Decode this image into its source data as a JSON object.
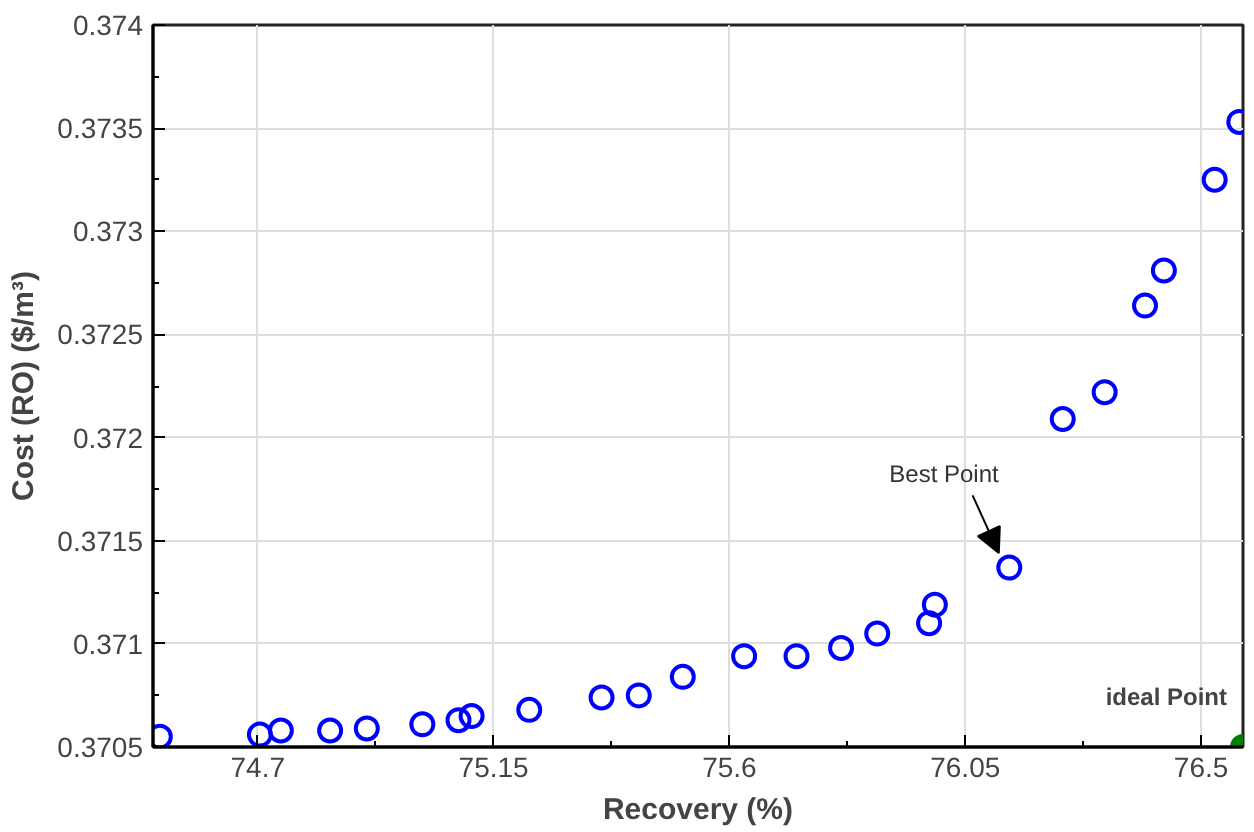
{
  "chart_data": {
    "type": "scatter",
    "xlabel": "Recovery (%)",
    "ylabel": "Cost (RO) ($/m³)",
    "xlim": [
      74.5,
      76.58
    ],
    "ylim": [
      0.3705,
      0.374
    ],
    "xticks": [
      74.7,
      {
        "value": 74.925,
        "label": null
      },
      75.15,
      {
        "value": 75.375,
        "label": null
      },
      75.6,
      {
        "value": 75.825,
        "label": null
      },
      76.05,
      {
        "value": 76.275,
        "label": null
      },
      76.5
    ],
    "yticks": [
      0.3705,
      {
        "value": 0.37075,
        "label": null
      },
      0.371,
      {
        "value": 0.37125,
        "label": null
      },
      0.3715,
      {
        "value": 0.37175,
        "label": null
      },
      0.372,
      {
        "value": 0.37225,
        "label": null
      },
      0.3725,
      {
        "value": 0.37275,
        "label": null
      },
      0.373,
      {
        "value": 0.37325,
        "label": null
      },
      0.3735,
      {
        "value": 0.37375,
        "label": null
      },
      0.374
    ],
    "grid": true,
    "marker": "circle",
    "series": [
      {
        "color": "#0000ff",
        "x": [
          74.513,
          74.704,
          74.744,
          74.838,
          74.908,
          75.014,
          75.083,
          75.108,
          75.218,
          75.356,
          75.427,
          75.511,
          75.628,
          75.728,
          75.813,
          75.882,
          75.981,
          75.992,
          76.134,
          76.236,
          76.316,
          76.393,
          76.429,
          76.526,
          76.573
        ],
        "values": [
          0.37055,
          0.37056,
          0.37058,
          0.37058,
          0.37059,
          0.37061,
          0.37063,
          0.37065,
          0.37068,
          0.37074,
          0.37075,
          0.37084,
          0.37094,
          0.37094,
          0.37098,
          0.37105,
          0.3711,
          0.37119,
          0.37137,
          0.37209,
          0.37222,
          0.37264,
          0.37281,
          0.37325,
          0.37353
        ]
      },
      {
        "color": "#008000",
        "x": [
          76.58
        ],
        "values": [
          0.3705
        ]
      }
    ],
    "annotations": [
      {
        "text": "Best Point",
        "x": 76.134,
        "y": 0.37137
      },
      {
        "text": "ideal Point",
        "x": 76.58,
        "y": 0.3705
      }
    ]
  }
}
